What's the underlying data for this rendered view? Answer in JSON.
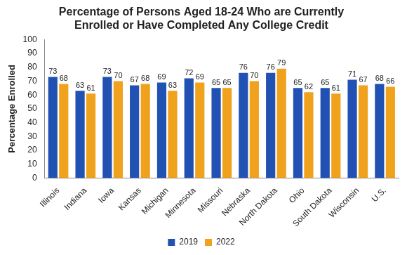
{
  "chart_data": {
    "type": "bar",
    "title": "Percentage of Persons Aged 18-24 Who are Currently Enrolled or Have Completed Any College Credit",
    "y_label": "Percentage Enrolled",
    "categories": [
      "Illinois",
      "Indiana",
      "Iowa",
      "Kansas",
      "Michigan",
      "Minnesota",
      "Missouri",
      "Nebraska",
      "North Dakota",
      "Ohio",
      "South Dakota",
      "Wisconsin",
      "U.S."
    ],
    "series": [
      {
        "name": "2019",
        "color": "#2152b3",
        "values": [
          73,
          63,
          73,
          67,
          69,
          72,
          65,
          76,
          76,
          65,
          65,
          71,
          68
        ]
      },
      {
        "name": "2022",
        "color": "#f0a21c",
        "values": [
          68,
          61,
          70,
          68,
          63,
          69,
          65,
          70,
          79,
          62,
          61,
          67,
          66
        ]
      }
    ],
    "ylim": [
      0,
      100
    ],
    "yticks": [
      0,
      10,
      20,
      30,
      40,
      50,
      60,
      70,
      80,
      90,
      100
    ],
    "grid": false,
    "legend": "bottom",
    "data_labels": true
  }
}
